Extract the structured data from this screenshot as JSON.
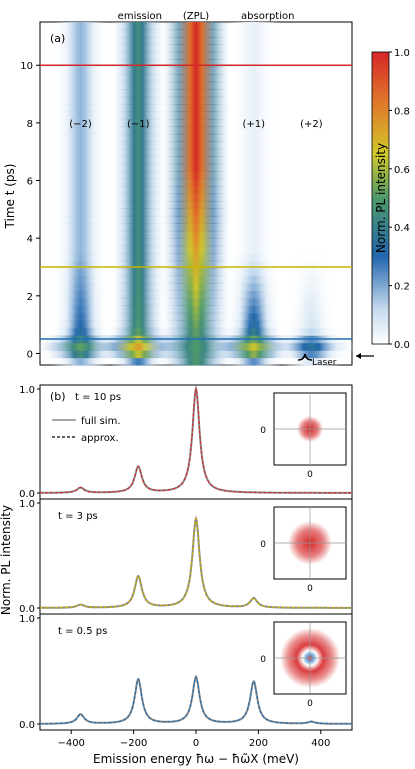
{
  "chart_data": [
    {
      "type": "heatmap",
      "panel_label": "(a)",
      "xlabel": "",
      "ylabel": "Time t (ps)",
      "ylim": [
        -0.4,
        11.5
      ],
      "y_ticks": [
        0,
        2,
        4,
        6,
        8,
        10
      ],
      "top_labels": [
        "emission",
        "(ZPL)",
        "absorption"
      ],
      "replica_labels": [
        "(−2)",
        "(−1)",
        "(+1)",
        "(+2)"
      ],
      "replica_energies_meV": [
        -370,
        -185,
        0,
        185,
        370
      ],
      "bands": [
        {
          "label": "(−2)",
          "center_meV": -370,
          "early_intensity": 0.35,
          "late_intensity": 0.18
        },
        {
          "label": "(−1)",
          "center_meV": -185,
          "early_intensity": 0.5,
          "late_intensity": 0.45
        },
        {
          "label": "(ZPL)",
          "center_meV": 0,
          "early_intensity": 0.55,
          "late_intensity": 1.0
        },
        {
          "label": "(+1)",
          "center_meV": 185,
          "early_intensity": 0.45,
          "late_intensity": 0.05
        },
        {
          "label": "(+2)",
          "center_meV": 370,
          "early_intensity": 0.12,
          "late_intensity": 0.0
        }
      ],
      "cut_lines": [
        {
          "t_ps": 10,
          "color": "#d62728"
        },
        {
          "t_ps": 3,
          "color": "#c8b400"
        },
        {
          "t_ps": 0.5,
          "color": "#1f6fb4"
        }
      ],
      "laser_label": "Laser",
      "colorbar": {
        "label": "Norm. PL intensity",
        "range": [
          0.0,
          1.0
        ],
        "ticks": [
          "0.0",
          "0.2",
          "0.4",
          "0.6",
          "0.8",
          "1.0"
        ],
        "colors": [
          "#ffffff",
          "#2166ac",
          "#d1c82a",
          "#d62728"
        ]
      }
    },
    {
      "type": "line",
      "panel_label": "(b)",
      "xlabel": "Emission energy ħω − ħω̃X (meV)",
      "ylabel": "Norm. PL intensity",
      "xlim": [
        -500,
        500
      ],
      "x_ticks": [
        -400,
        -200,
        0,
        200,
        400
      ],
      "legend": [
        "full sim.",
        "approx."
      ],
      "panels": [
        {
          "label": "t = 10 ps",
          "peaks": [
            {
              "x": -370,
              "y": 0.05
            },
            {
              "x": -185,
              "y": 0.25
            },
            {
              "x": 0,
              "y": 1.0
            },
            {
              "x": 185,
              "y": 0.0
            },
            {
              "x": 370,
              "y": 0.0
            }
          ],
          "color": "#d62728",
          "y_ticks": [
            "0.0",
            "1.0"
          ]
        },
        {
          "label": "t = 3 ps",
          "peaks": [
            {
              "x": -370,
              "y": 0.03
            },
            {
              "x": -185,
              "y": 0.3
            },
            {
              "x": 0,
              "y": 0.85
            },
            {
              "x": 185,
              "y": 0.09
            },
            {
              "x": 370,
              "y": 0.0
            }
          ],
          "color": "#c8b400",
          "y_ticks": [
            "0.0",
            "1.0"
          ]
        },
        {
          "label": "t = 0.5 ps",
          "peaks": [
            {
              "x": -370,
              "y": 0.09
            },
            {
              "x": -185,
              "y": 0.42
            },
            {
              "x": 0,
              "y": 0.44
            },
            {
              "x": 185,
              "y": 0.4
            },
            {
              "x": 370,
              "y": 0.02
            }
          ],
          "color": "#1f6fb4",
          "y_ticks": [
            "0.0",
            "1.0"
          ]
        }
      ],
      "inset_tick": "0"
    }
  ]
}
